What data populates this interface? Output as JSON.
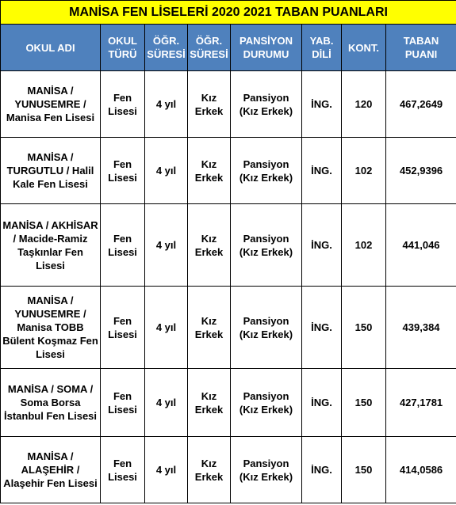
{
  "title": "MANİSA FEN LİSELERİ 2020 2021 TABAN PUANLARI",
  "headers": {
    "okul_adi": "OKUL ADI",
    "okul_turu": "OKUL TÜRÜ",
    "ogr_suresi": "ÖĞR. SÜRESİ",
    "ogr_suresi_2": "ÖĞR. SÜRESİ",
    "pansiyon": "PANSİYON DURUMU",
    "yab_dili": "YAB. DİLİ",
    "kont": "KONT.",
    "taban": "TABAN PUANI"
  },
  "rows": [
    {
      "okul_adi": "MANİSA / YUNUSEMRE / Manisa Fen Lisesi",
      "okul_turu": "Fen Lisesi",
      "ogr_suresi": "4 yıl",
      "cinsiyet": "Kız Erkek",
      "pansiyon": "Pansiyon (Kız Erkek)",
      "yab_dili": "İNG.",
      "kont": "120",
      "taban": "467,2649"
    },
    {
      "okul_adi": "MANİSA / TURGUTLU / Halil Kale Fen Lisesi",
      "okul_turu": "Fen Lisesi",
      "ogr_suresi": "4 yıl",
      "cinsiyet": "Kız Erkek",
      "pansiyon": "Pansiyon (Kız Erkek)",
      "yab_dili": "İNG.",
      "kont": "102",
      "taban": "452,9396"
    },
    {
      "okul_adi": "MANİSA / AKHİSAR / Macide-Ramiz Taşkınlar Fen Lisesi",
      "okul_turu": "Fen Lisesi",
      "ogr_suresi": "4 yıl",
      "cinsiyet": "Kız Erkek",
      "pansiyon": "Pansiyon (Kız Erkek)",
      "yab_dili": "İNG.",
      "kont": "102",
      "taban": "441,046"
    },
    {
      "okul_adi": "MANİSA / YUNUSEMRE / Manisa TOBB Bülent Koşmaz Fen Lisesi",
      "okul_turu": "Fen Lisesi",
      "ogr_suresi": "4 yıl",
      "cinsiyet": "Kız Erkek",
      "pansiyon": "Pansiyon (Kız Erkek)",
      "yab_dili": "İNG.",
      "kont": "150",
      "taban": "439,384"
    },
    {
      "okul_adi": "MANİSA / SOMA / Soma Borsa İstanbul Fen Lisesi",
      "okul_turu": "Fen Lisesi",
      "ogr_suresi": "4 yıl",
      "cinsiyet": "Kız Erkek",
      "pansiyon": "Pansiyon (Kız Erkek)",
      "yab_dili": "İNG.",
      "kont": "150",
      "taban": "427,1781"
    },
    {
      "okul_adi": "MANİSA / ALAŞEHİR / Alaşehir Fen Lisesi",
      "okul_turu": "Fen Lisesi",
      "ogr_suresi": "4 yıl",
      "cinsiyet": "Kız Erkek",
      "pansiyon": "Pansiyon (Kız Erkek)",
      "yab_dili": "İNG.",
      "kont": "150",
      "taban": "414,0586"
    }
  ],
  "colors": {
    "title_bg": "#ffff00",
    "header_bg": "#4f81bd",
    "header_text": "#ffffff"
  }
}
